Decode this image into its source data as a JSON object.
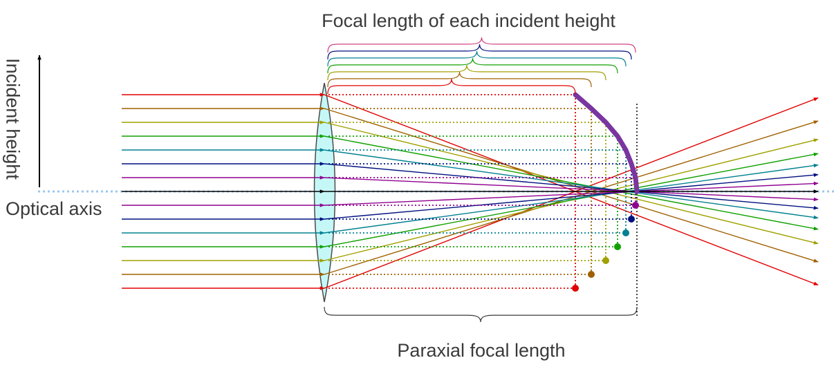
{
  "labels": {
    "title": "Focal length of each incident height",
    "bottom": "Paraxial focal length",
    "axis": "Optical axis",
    "incident": "Incident height"
  },
  "colors": {
    "rays": [
      "#e00000",
      "#a06000",
      "#a0a000",
      "#10a000",
      "#008090",
      "#001080",
      "#900090",
      "#000000"
    ],
    "curve": "#7a35a0",
    "lens_fill": "#c5f7f7",
    "lens_stroke": "#4a4a4a",
    "axis": "#9cc8ee"
  }
}
